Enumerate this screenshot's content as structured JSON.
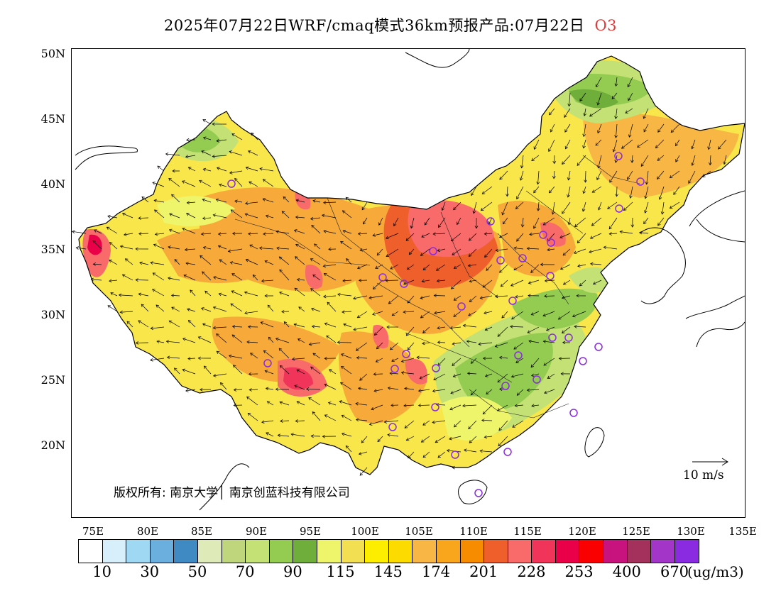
{
  "title": {
    "main": "2025年07月22日WRF/cmaq模式36km预报产品:07月22日",
    "species": "O3"
  },
  "map": {
    "lat_labels": [
      "50N",
      "45N",
      "40N",
      "35N",
      "30N",
      "25N",
      "20N"
    ],
    "lon_labels": [
      "75E",
      "80E",
      "85E",
      "90E",
      "95E",
      "100E",
      "105E",
      "110E",
      "115E",
      "120E",
      "125E",
      "130E",
      "135E"
    ],
    "copyright": "版权所有: 南京大学│ 南京创蓝科技有限公司",
    "wind_scale_label": "10 m/s"
  },
  "legend": {
    "colors": [
      "#ffffff",
      "#d7effa",
      "#9fd8f3",
      "#6aafde",
      "#3f8ac2",
      "#dfeab9",
      "#bfd67c",
      "#c3e174",
      "#94cc52",
      "#6fae3a",
      "#eef56a",
      "#f2e052",
      "#fdee00",
      "#fcdc00",
      "#f8b745",
      "#f9a61c",
      "#f88c00",
      "#ef5f2c",
      "#f96a6a",
      "#f1345a",
      "#ea0048",
      "#fb0000",
      "#c8127e",
      "#a4305c",
      "#a336c8",
      "#8a2be2"
    ],
    "labels": [
      "10",
      "30",
      "50",
      "70",
      "90",
      "115",
      "145",
      "174",
      "201",
      "228",
      "253",
      "400",
      "670"
    ],
    "unit": "(ug/m3)"
  }
}
